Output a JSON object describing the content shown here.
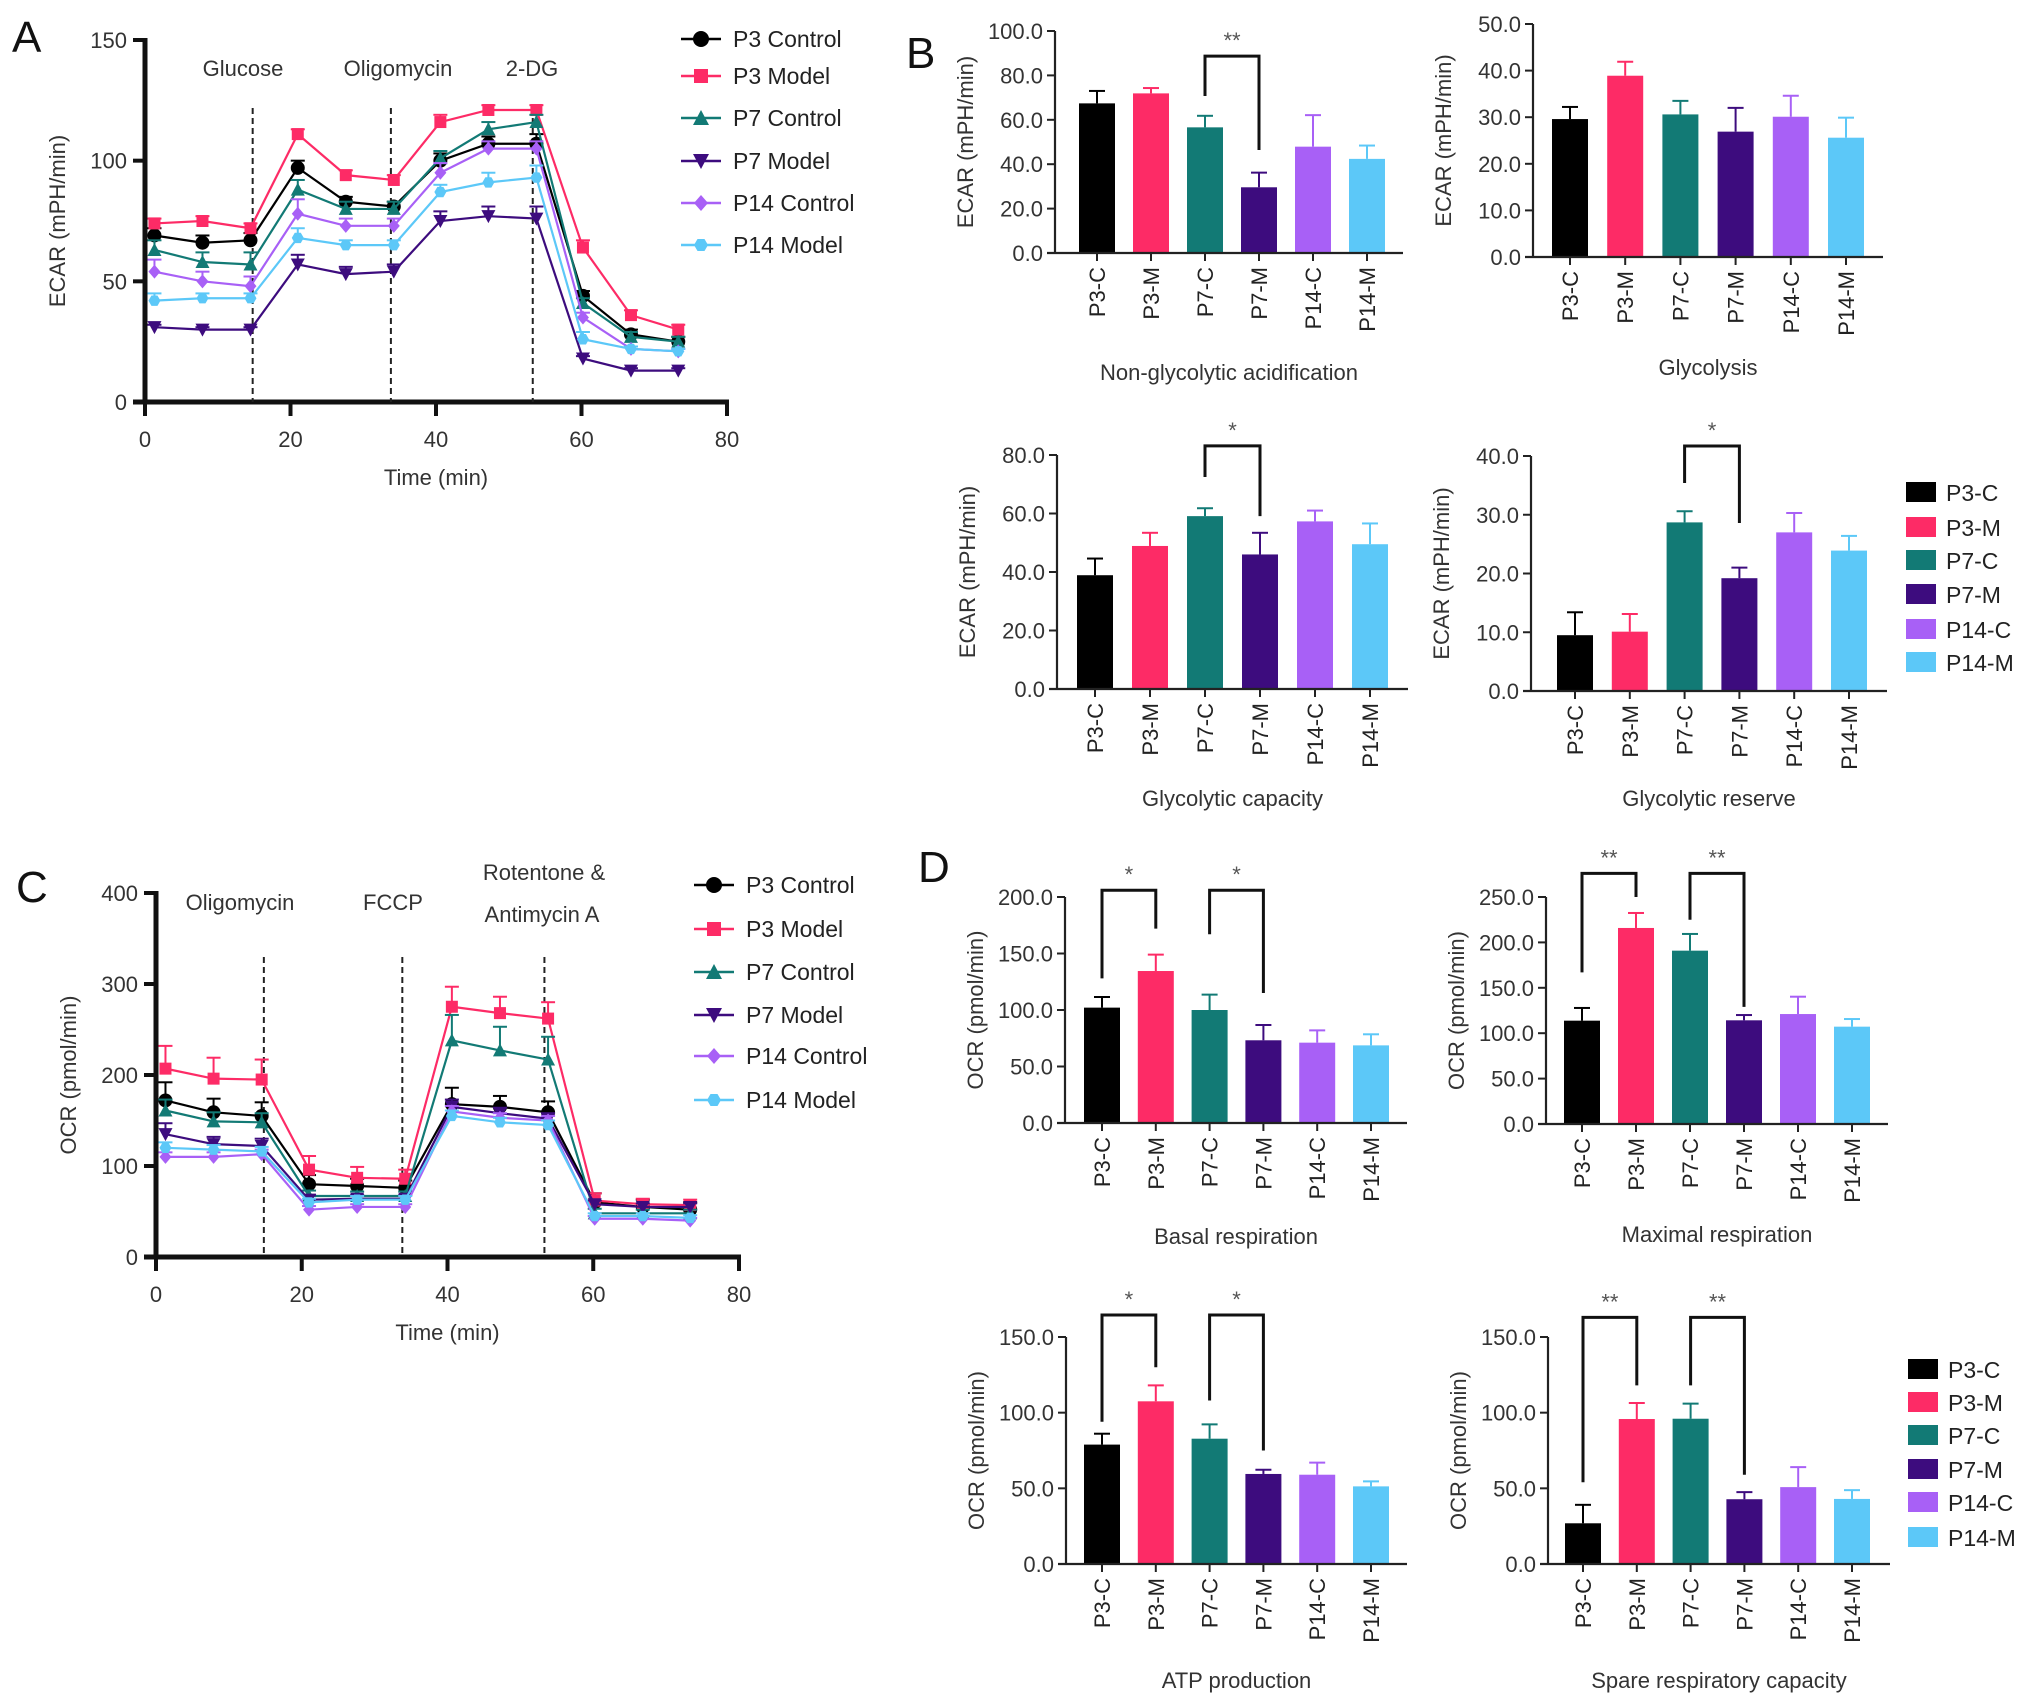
{
  "figure": {
    "panel_labels": [
      "A",
      "B",
      "C",
      "D"
    ]
  },
  "groups": {
    "short": [
      "P3-C",
      "P3-M",
      "P7-C",
      "P7-M",
      "P14-C",
      "P14-M"
    ],
    "long": [
      "P3 Control",
      "P3 Model",
      "P7 Control",
      "P7 Model",
      "P14 Control",
      "P14 Model"
    ],
    "colors": [
      "#000000",
      "#fd2b66",
      "#127a75",
      "#3d0c7e",
      "#a860f6",
      "#5cc8f8"
    ],
    "markers": [
      "circle",
      "square",
      "triangle-up",
      "triangle-down",
      "diamond",
      "hexagon"
    ]
  },
  "chart_data": [
    {
      "id": "A",
      "type": "line",
      "title": "",
      "xlabel": "Time (min)",
      "ylabel": "ECAR (mPH/min)",
      "xlim": [
        0,
        80
      ],
      "ylim": [
        0,
        150
      ],
      "xticks": [
        0,
        20,
        40,
        60,
        80
      ],
      "yticks": [
        0,
        50,
        100,
        150
      ],
      "grid": false,
      "legend": "right",
      "annotations": [
        {
          "text": "Glucose",
          "x": 14.8
        },
        {
          "text": "Oligomycin",
          "x": 33.8
        },
        {
          "text": "2-DG",
          "x": 53.3
        }
      ],
      "injections": [
        14.8,
        33.8,
        53.3
      ],
      "x": [
        1.3,
        7.9,
        14.5,
        21.0,
        27.6,
        34.2,
        40.6,
        47.2,
        53.8,
        60.2,
        66.8,
        73.3
      ],
      "series": [
        {
          "name": "P3 Control",
          "values": [
            69,
            66,
            67,
            97,
            83,
            81,
            100,
            107,
            107,
            44,
            28,
            25
          ],
          "errors": [
            3,
            3,
            3,
            3,
            2,
            2,
            3,
            3,
            4,
            2,
            2,
            2
          ]
        },
        {
          "name": "P3 Model",
          "values": [
            74,
            75,
            72,
            111,
            94,
            92,
            116,
            121,
            121,
            64,
            36,
            30
          ],
          "errors": [
            2,
            2,
            2,
            2,
            2,
            2,
            3,
            2,
            2,
            3,
            2,
            2
          ]
        },
        {
          "name": "P7 Control",
          "values": [
            63,
            58,
            57,
            88,
            80,
            80,
            101,
            113,
            116,
            41,
            27,
            25
          ],
          "errors": [
            4,
            4,
            5,
            4,
            3,
            3,
            3,
            3,
            3,
            2,
            2,
            2
          ]
        },
        {
          "name": "P7 Model",
          "values": [
            31,
            30,
            30,
            57,
            53,
            54,
            75,
            77,
            76,
            18,
            13,
            13
          ],
          "errors": [
            1,
            1,
            1,
            4,
            3,
            3,
            4,
            4,
            5,
            1,
            1,
            1
          ]
        },
        {
          "name": "P14 Control",
          "values": [
            54,
            50,
            48,
            78,
            73,
            73,
            95,
            105,
            105,
            35,
            22,
            21
          ],
          "errors": [
            5,
            4,
            4,
            6,
            3,
            3,
            4,
            3,
            3,
            2,
            1,
            1
          ]
        },
        {
          "name": "P14 Model",
          "values": [
            42,
            43,
            43,
            68,
            65,
            65,
            87,
            91,
            93,
            26,
            22,
            21
          ],
          "errors": [
            3,
            2,
            2,
            4,
            2,
            2,
            3,
            4,
            5,
            3,
            1,
            1
          ]
        }
      ]
    },
    {
      "id": "B1",
      "type": "bar",
      "title": "",
      "xlabel": "Non-glycolytic acidification",
      "ylabel": "ECAR (mPH/min)",
      "ylim": [
        0,
        100
      ],
      "yticks": [
        "0.0",
        "20.0",
        "40.0",
        "60.0",
        "80.0",
        "100.0"
      ],
      "categories": [
        "P3-C",
        "P3-M",
        "P7-C",
        "P7-M",
        "P14-C",
        "P14-M"
      ],
      "values": [
        67.4,
        71.9,
        56.6,
        29.6,
        47.9,
        42.4
      ],
      "errors": [
        5.6,
        2.4,
        5.2,
        6.6,
        14.2,
        6.0
      ],
      "significance": [
        {
          "from": 2,
          "to": 3,
          "label": "**",
          "top": 88.7,
          "left_end": 70.7,
          "right_end": 46.4
        }
      ]
    },
    {
      "id": "B2",
      "type": "bar",
      "title": "",
      "xlabel": "Glycolysis",
      "ylabel": "ECAR (mPH/min)",
      "ylim": [
        0,
        50
      ],
      "yticks": [
        "0.0",
        "10.0",
        "20.0",
        "30.0",
        "40.0",
        "50.0"
      ],
      "categories": [
        "P3-C",
        "P3-M",
        "P7-C",
        "P7-M",
        "P14-C",
        "P14-M"
      ],
      "values": [
        29.6,
        38.9,
        30.6,
        26.9,
        30.1,
        25.6
      ],
      "errors": [
        2.6,
        3.0,
        2.9,
        5.1,
        4.5,
        4.3
      ],
      "significance": []
    },
    {
      "id": "B3",
      "type": "bar",
      "title": "",
      "xlabel": "Glycolytic capacity",
      "ylabel": "ECAR (mPH/min)",
      "ylim": [
        0,
        80
      ],
      "yticks": [
        "0.0",
        "20.0",
        "40.0",
        "60.0",
        "80.0"
      ],
      "categories": [
        "P3-C",
        "P3-M",
        "P7-C",
        "P7-M",
        "P14-C",
        "P14-M"
      ],
      "values": [
        38.9,
        48.9,
        59.1,
        46.0,
        57.3,
        49.5
      ],
      "errors": [
        5.7,
        4.5,
        2.7,
        7.4,
        3.7,
        7.1
      ],
      "significance": [
        {
          "from": 2,
          "to": 3,
          "label": "*",
          "top": 83.1,
          "left_end": 72.5,
          "right_end": 59.1
        }
      ]
    },
    {
      "id": "B4",
      "type": "bar",
      "title": "",
      "xlabel": "Glycolytic reserve",
      "ylabel": "ECAR (mPH/min)",
      "ylim": [
        0,
        40
      ],
      "yticks": [
        "0.0",
        "10.0",
        "20.0",
        "30.0",
        "40.0"
      ],
      "categories": [
        "P3-C",
        "P3-M",
        "P7-C",
        "P7-M",
        "P14-C",
        "P14-M"
      ],
      "values": [
        9.5,
        10.1,
        28.7,
        19.2,
        27.0,
        23.9
      ],
      "errors": [
        3.9,
        3.0,
        1.9,
        1.8,
        3.3,
        2.5
      ],
      "legend": "right",
      "significance": [
        {
          "from": 2,
          "to": 3,
          "label": "*",
          "top": 41.7,
          "left_end": 35.4,
          "right_end": 28.6
        }
      ]
    },
    {
      "id": "C",
      "type": "line",
      "title": "",
      "xlabel": "Time (min)",
      "ylabel": "OCR (pmol/min)",
      "xlim": [
        0,
        80
      ],
      "ylim": [
        0,
        400
      ],
      "xticks": [
        0,
        20,
        40,
        60,
        80
      ],
      "yticks": [
        0,
        100,
        200,
        300,
        400
      ],
      "grid": false,
      "legend": "right",
      "annotations": [
        {
          "text": "Oligomycin",
          "x": 14.8
        },
        {
          "text": "FCCP",
          "x": 33.8
        },
        {
          "text": "Rotentone &",
          "x": 53.3
        },
        {
          "text": "Antimycin A",
          "x": 53.3
        }
      ],
      "injections": [
        14.8,
        33.8,
        53.3
      ],
      "x": [
        1.3,
        7.9,
        14.5,
        21.0,
        27.6,
        34.2,
        40.6,
        47.2,
        53.8,
        60.2,
        66.8,
        73.3
      ],
      "series": [
        {
          "name": "P3 Control",
          "values": [
            172,
            159,
            155,
            80,
            78,
            76,
            168,
            165,
            159,
            60,
            55,
            52
          ],
          "errors": [
            20,
            15,
            15,
            10,
            8,
            8,
            18,
            12,
            12,
            10,
            8,
            8
          ]
        },
        {
          "name": "P3 Model",
          "values": [
            207,
            196,
            195,
            96,
            87,
            86,
            275,
            268,
            262,
            62,
            58,
            57
          ],
          "errors": [
            25,
            23,
            22,
            15,
            12,
            10,
            22,
            18,
            18,
            8,
            6,
            6
          ]
        },
        {
          "name": "P7 Control",
          "values": [
            161,
            149,
            148,
            67,
            67,
            67,
            238,
            227,
            217,
            48,
            48,
            48
          ],
          "errors": [
            12,
            10,
            10,
            6,
            5,
            5,
            28,
            26,
            25,
            5,
            4,
            4
          ]
        },
        {
          "name": "P7 Model",
          "values": [
            135,
            124,
            122,
            63,
            64,
            64,
            165,
            158,
            152,
            58,
            55,
            55
          ],
          "errors": [
            12,
            8,
            8,
            5,
            4,
            4,
            8,
            6,
            6,
            4,
            4,
            4
          ]
        },
        {
          "name": "P14 Control",
          "values": [
            110,
            110,
            113,
            52,
            55,
            55,
            160,
            153,
            150,
            42,
            42,
            40
          ],
          "errors": [
            5,
            5,
            5,
            4,
            3,
            3,
            6,
            5,
            5,
            3,
            3,
            3
          ]
        },
        {
          "name": "P14 Model",
          "values": [
            120,
            118,
            116,
            60,
            63,
            63,
            155,
            148,
            145,
            45,
            45,
            43
          ],
          "errors": [
            6,
            5,
            5,
            4,
            4,
            4,
            6,
            5,
            5,
            3,
            3,
            3
          ]
        }
      ]
    },
    {
      "id": "D1",
      "type": "bar",
      "title": "",
      "xlabel": "Basal respiration",
      "ylabel": "OCR (pmol/min)",
      "ylim": [
        0,
        200
      ],
      "yticks": [
        "0.0",
        "50.0",
        "100.0",
        "150.0",
        "200.0"
      ],
      "categories": [
        "P3-C",
        "P3-M",
        "P7-C",
        "P7-M",
        "P14-C",
        "P14-M"
      ],
      "values": [
        102.1,
        134.5,
        100.0,
        73.2,
        71.1,
        68.7
      ],
      "errors": [
        9.4,
        14.5,
        13.6,
        13.5,
        10.9,
        9.8
      ],
      "significance": [
        {
          "from": 0,
          "to": 1,
          "label": "*",
          "top": 206,
          "left_end": 128,
          "right_end": 172
        },
        {
          "from": 2,
          "to": 3,
          "label": "*",
          "top": 206,
          "left_end": 167,
          "right_end": 115
        }
      ]
    },
    {
      "id": "D2",
      "type": "bar",
      "title": "",
      "xlabel": "Maximal respiration",
      "ylabel": "OCR (pmol/min)",
      "ylim": [
        0,
        250
      ],
      "yticks": [
        "0.0",
        "50.0",
        "100.0",
        "150.0",
        "200.0",
        "250.0"
      ],
      "categories": [
        "P3-C",
        "P3-M",
        "P7-C",
        "P7-M",
        "P14-C",
        "P14-M"
      ],
      "values": [
        113.8,
        215.9,
        190.9,
        114.2,
        121.1,
        107.2
      ],
      "errors": [
        14.0,
        16.5,
        18.4,
        5.8,
        19.1,
        8.4
      ],
      "significance": [
        {
          "from": 0,
          "to": 1,
          "label": "**",
          "top": 276,
          "left_end": 167,
          "right_end": 250
        },
        {
          "from": 2,
          "to": 3,
          "label": "**",
          "top": 276,
          "left_end": 225,
          "right_end": 129
        }
      ]
    },
    {
      "id": "D3",
      "type": "bar",
      "title": "",
      "xlabel": "ATP production",
      "ylabel": "OCR (pmol/min)",
      "ylim": [
        0,
        150
      ],
      "yticks": [
        "0.0",
        "50.0",
        "100.0",
        "150.0"
      ],
      "categories": [
        "P3-C",
        "P3-M",
        "P7-C",
        "P7-M",
        "P14-C",
        "P14-M"
      ],
      "values": [
        78.9,
        107.5,
        82.8,
        59.5,
        59.0,
        51.3
      ],
      "errors": [
        7.2,
        10.5,
        9.5,
        2.8,
        8.0,
        3.3
      ],
      "significance": [
        {
          "from": 0,
          "to": 1,
          "label": "*",
          "top": 164.5,
          "left_end": 94,
          "right_end": 130
        },
        {
          "from": 2,
          "to": 3,
          "label": "*",
          "top": 164.5,
          "left_end": 108,
          "right_end": 75
        }
      ]
    },
    {
      "id": "D4",
      "type": "bar",
      "title": "",
      "xlabel": "Spare respiratory capacity",
      "ylabel": "OCR (pmol/min)",
      "ylim": [
        0,
        150
      ],
      "yticks": [
        "0.0",
        "50.0",
        "100.0",
        "150.0"
      ],
      "categories": [
        "P3-C",
        "P3-M",
        "P7-C",
        "P7-M",
        "P14-C",
        "P14-M"
      ],
      "values": [
        26.9,
        95.8,
        96.0,
        42.8,
        50.8,
        43.0
      ],
      "errors": [
        12.2,
        10.6,
        10.0,
        4.7,
        13.2,
        5.8
      ],
      "legend": "right",
      "significance": [
        {
          "from": 0,
          "to": 1,
          "label": "**",
          "top": 163,
          "left_end": 54,
          "right_end": 118
        },
        {
          "from": 2,
          "to": 3,
          "label": "**",
          "top": 163,
          "left_end": 118,
          "right_end": 59
        }
      ]
    }
  ]
}
